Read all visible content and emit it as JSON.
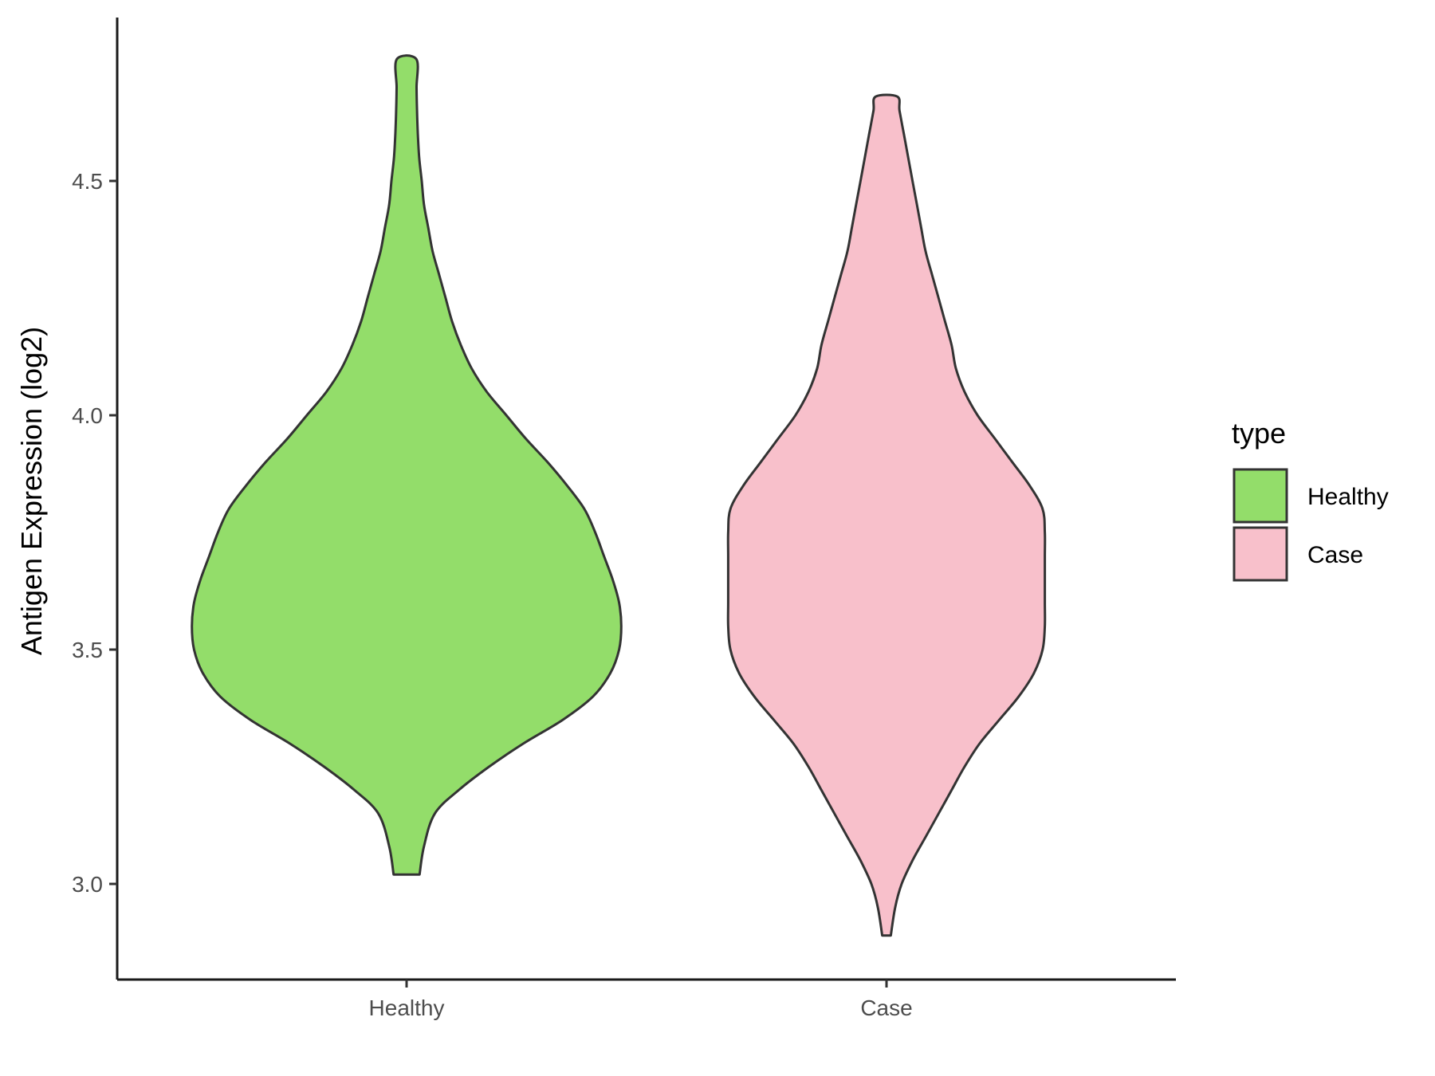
{
  "chart_data": {
    "type": "violin",
    "title": "",
    "xlabel": "",
    "ylabel": "Antigen Expression (log2)",
    "categories": [
      "Healthy",
      "Case"
    ],
    "y_ticks": [
      "3.0",
      "3.5",
      "4.0",
      "4.5"
    ],
    "y_tick_values": [
      3.0,
      3.5,
      4.0,
      4.5
    ],
    "ylim": [
      2.8,
      4.85
    ],
    "grid": false,
    "legend": {
      "title": "type",
      "placement": "right",
      "entries": [
        "Healthy",
        "Case"
      ]
    },
    "colors": {
      "Healthy": "#93dd6a",
      "Case": "#f8c0cb",
      "outline": "#333333"
    },
    "series": [
      {
        "name": "Healthy",
        "min": 3.02,
        "max": 4.76,
        "density_profile": [
          [
            3.02,
            0.06
          ],
          [
            3.08,
            0.08
          ],
          [
            3.15,
            0.13
          ],
          [
            3.2,
            0.24
          ],
          [
            3.25,
            0.38
          ],
          [
            3.3,
            0.54
          ],
          [
            3.35,
            0.72
          ],
          [
            3.4,
            0.86
          ],
          [
            3.45,
            0.94
          ],
          [
            3.5,
            0.98
          ],
          [
            3.55,
            0.99
          ],
          [
            3.6,
            0.98
          ],
          [
            3.65,
            0.95
          ],
          [
            3.7,
            0.91
          ],
          [
            3.75,
            0.87
          ],
          [
            3.8,
            0.82
          ],
          [
            3.85,
            0.74
          ],
          [
            3.9,
            0.65
          ],
          [
            3.95,
            0.55
          ],
          [
            4.0,
            0.46
          ],
          [
            4.05,
            0.37
          ],
          [
            4.1,
            0.3
          ],
          [
            4.15,
            0.25
          ],
          [
            4.2,
            0.21
          ],
          [
            4.25,
            0.18
          ],
          [
            4.3,
            0.15
          ],
          [
            4.35,
            0.12
          ],
          [
            4.4,
            0.1
          ],
          [
            4.45,
            0.08
          ],
          [
            4.5,
            0.07
          ],
          [
            4.55,
            0.058
          ],
          [
            4.6,
            0.052
          ],
          [
            4.65,
            0.048
          ],
          [
            4.7,
            0.046
          ],
          [
            4.76,
            0.045
          ]
        ]
      },
      {
        "name": "Case",
        "min": 2.89,
        "max": 4.68,
        "density_profile": [
          [
            2.89,
            0.02
          ],
          [
            2.95,
            0.04
          ],
          [
            3.0,
            0.07
          ],
          [
            3.05,
            0.12
          ],
          [
            3.1,
            0.18
          ],
          [
            3.15,
            0.24
          ],
          [
            3.2,
            0.3
          ],
          [
            3.25,
            0.36
          ],
          [
            3.3,
            0.43
          ],
          [
            3.35,
            0.52
          ],
          [
            3.4,
            0.61
          ],
          [
            3.45,
            0.68
          ],
          [
            3.5,
            0.72
          ],
          [
            3.55,
            0.73
          ],
          [
            3.6,
            0.73
          ],
          [
            3.65,
            0.73
          ],
          [
            3.7,
            0.73
          ],
          [
            3.75,
            0.73
          ],
          [
            3.8,
            0.72
          ],
          [
            3.85,
            0.66
          ],
          [
            3.9,
            0.58
          ],
          [
            3.95,
            0.5
          ],
          [
            4.0,
            0.42
          ],
          [
            4.05,
            0.36
          ],
          [
            4.1,
            0.32
          ],
          [
            4.15,
            0.3
          ],
          [
            4.2,
            0.27
          ],
          [
            4.25,
            0.24
          ],
          [
            4.3,
            0.21
          ],
          [
            4.35,
            0.18
          ],
          [
            4.4,
            0.16
          ],
          [
            4.45,
            0.14
          ],
          [
            4.5,
            0.12
          ],
          [
            4.55,
            0.1
          ],
          [
            4.6,
            0.08
          ],
          [
            4.65,
            0.06
          ],
          [
            4.68,
            0.05
          ]
        ]
      }
    ]
  }
}
